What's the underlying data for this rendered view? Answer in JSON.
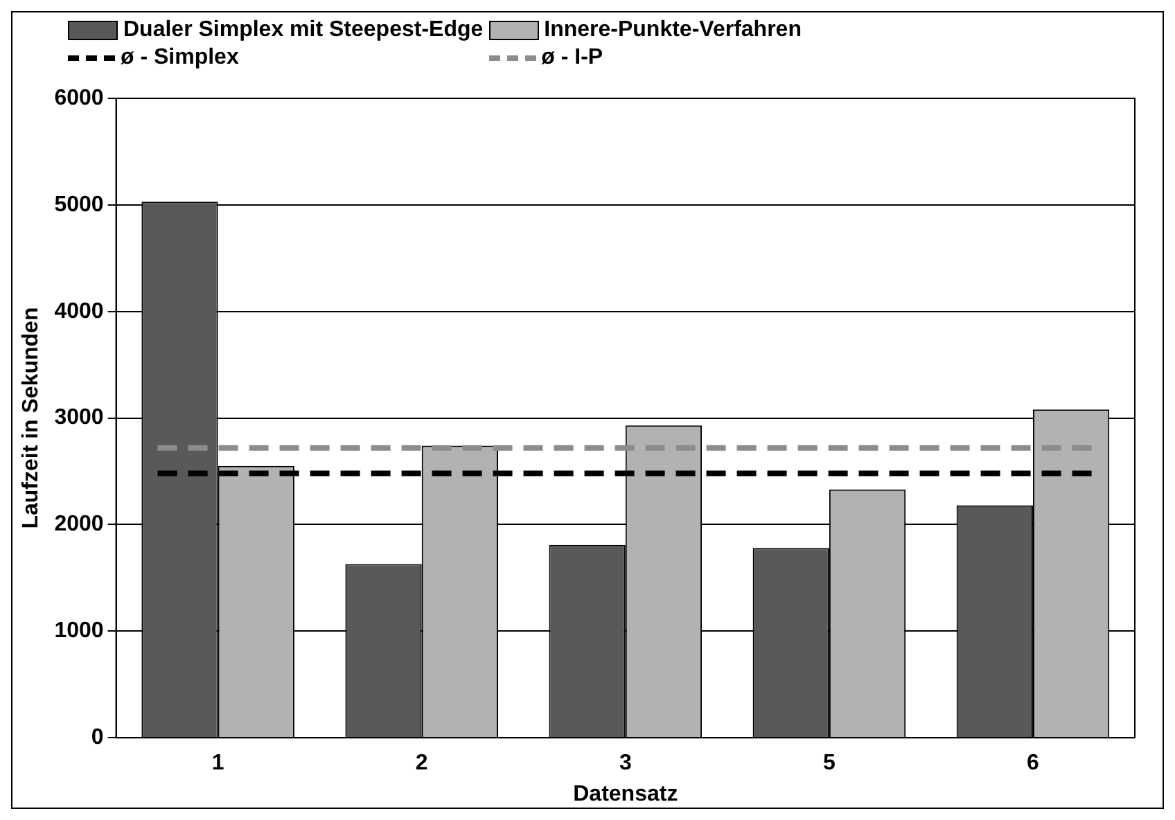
{
  "chart_data": {
    "type": "bar",
    "xlabel": "Datensatz",
    "ylabel": "Laufzeit in Sekunden",
    "categories": [
      "1",
      "2",
      "3",
      "5",
      "6"
    ],
    "series": [
      {
        "name": "Dualer Simplex mit Steepest-Edge",
        "color": "#595959",
        "values": [
          5030,
          1630,
          1810,
          1780,
          2180
        ]
      },
      {
        "name": "Innere-Punkte-Verfahren",
        "color": "#b2b2b2",
        "values": [
          2550,
          2740,
          2930,
          2330,
          3080
        ]
      }
    ],
    "ref_lines": [
      {
        "axis": "y",
        "value": 2480,
        "label": "ø - Simplex",
        "color": "#000000",
        "line_style": "dashed"
      },
      {
        "axis": "y",
        "value": 2720,
        "label": "ø - I-P",
        "color": "#8c8c8c",
        "line_style": "dashed"
      }
    ],
    "ylim": [
      0,
      6000
    ],
    "yticks": [
      0,
      1000,
      2000,
      3000,
      4000,
      5000,
      6000
    ],
    "grid": "y",
    "legend": "top left"
  }
}
